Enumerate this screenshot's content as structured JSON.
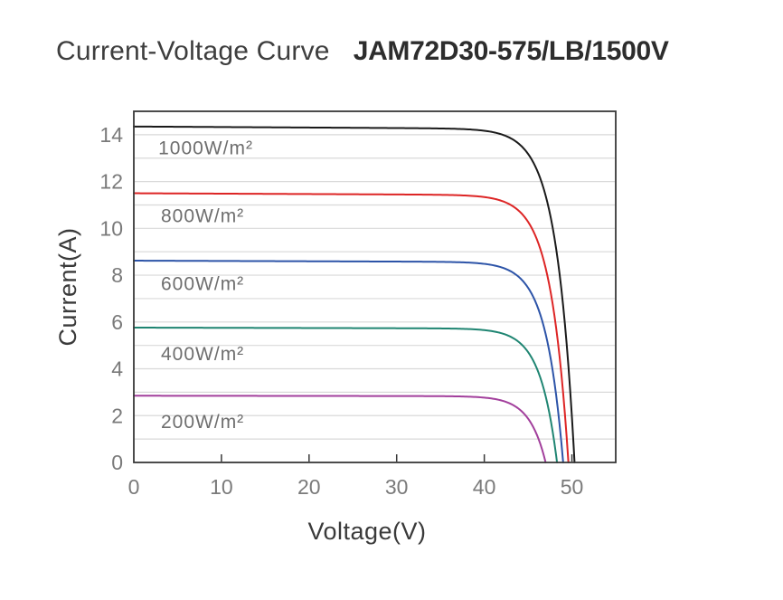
{
  "header": {
    "title": "Current-Voltage Curve",
    "model": "JAM72D30-575/LB/1500V"
  },
  "chart_data": {
    "type": "line",
    "title": "Current-Voltage Curve",
    "subtitle": "JAM72D30-575/LB/1500V",
    "xlabel": "Voltage(V)",
    "ylabel": "Current(A)",
    "xlim": [
      0,
      55
    ],
    "ylim": [
      0,
      15
    ],
    "x_ticks": [
      0,
      10,
      20,
      30,
      40,
      50
    ],
    "y_ticks": [
      0,
      2,
      4,
      6,
      8,
      10,
      12,
      14
    ],
    "grid": "horizontal gridlines every 1 A",
    "legend_position": "labels inside plot under each curve",
    "series": [
      {
        "name": "1000W/m²",
        "isc": 14.35,
        "voc": 50.3,
        "knee": 2.05,
        "color": "#1a1a1a",
        "label_x": 2.8,
        "label_y": 13.45
      },
      {
        "name": "800W/m²",
        "isc": 11.5,
        "voc": 49.6,
        "knee": 2.0,
        "color": "#dd2525",
        "label_x": 3.1,
        "label_y": 10.55
      },
      {
        "name": "600W/m²",
        "isc": 8.62,
        "voc": 49.0,
        "knee": 1.95,
        "color": "#2d54a8",
        "label_x": 3.1,
        "label_y": 7.65
      },
      {
        "name": "400W/m²",
        "isc": 5.76,
        "voc": 48.3,
        "knee": 1.9,
        "color": "#1f8572",
        "label_x": 3.1,
        "label_y": 4.65
      },
      {
        "name": "200W/m²",
        "isc": 2.85,
        "voc": 47.0,
        "knee": 1.85,
        "color": "#a23f9c",
        "label_x": 3.1,
        "label_y": 1.75
      }
    ],
    "colors": {
      "axis": "#383838",
      "grid": "#d9d9d9",
      "tick_label": "#7a7a7a",
      "series_label": "#6e6e6e"
    }
  }
}
